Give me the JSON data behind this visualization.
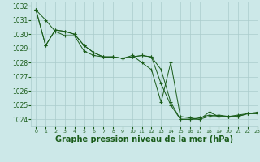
{
  "background_color": "#cce8e8",
  "grid_color": "#aacccc",
  "line_color": "#1a5c1a",
  "marker_color": "#1a5c1a",
  "xlabel": "Graphe pression niveau de la mer (hPa)",
  "xlabel_fontsize": 7,
  "xlim": [
    -0.5,
    23
  ],
  "ylim": [
    1023.5,
    1032.3
  ],
  "yticks": [
    1024,
    1025,
    1026,
    1027,
    1028,
    1029,
    1030,
    1031,
    1032
  ],
  "xticks": [
    0,
    1,
    2,
    3,
    4,
    5,
    6,
    7,
    8,
    9,
    10,
    11,
    12,
    13,
    14,
    15,
    16,
    17,
    18,
    19,
    20,
    21,
    22,
    23
  ],
  "series": [
    [
      1031.7,
      1031.0,
      1030.2,
      1029.9,
      1029.9,
      1028.8,
      1028.5,
      1028.4,
      1028.4,
      1028.3,
      1028.4,
      1028.5,
      1028.4,
      1027.5,
      1025.2,
      1024.0,
      1024.0,
      1024.1,
      1024.3,
      1024.2,
      1024.2,
      1024.2,
      1024.4,
      1024.4
    ],
    [
      1031.7,
      1029.2,
      1030.3,
      1030.2,
      1030.0,
      1029.2,
      1028.7,
      1028.4,
      1028.4,
      1028.3,
      1028.4,
      1028.5,
      1028.4,
      1026.5,
      1025.0,
      1024.0,
      1024.0,
      1024.0,
      1024.2,
      1024.3,
      1024.2,
      1024.3,
      1024.4,
      1024.5
    ],
    [
      1031.7,
      1029.2,
      1030.3,
      1030.2,
      1030.0,
      1029.2,
      1028.7,
      1028.4,
      1028.4,
      1028.3,
      1028.5,
      1028.0,
      1027.5,
      1025.2,
      1028.0,
      1024.2,
      1024.1,
      1024.0,
      1024.5,
      1024.2,
      1024.2,
      1024.2,
      1024.4,
      1024.4
    ]
  ]
}
